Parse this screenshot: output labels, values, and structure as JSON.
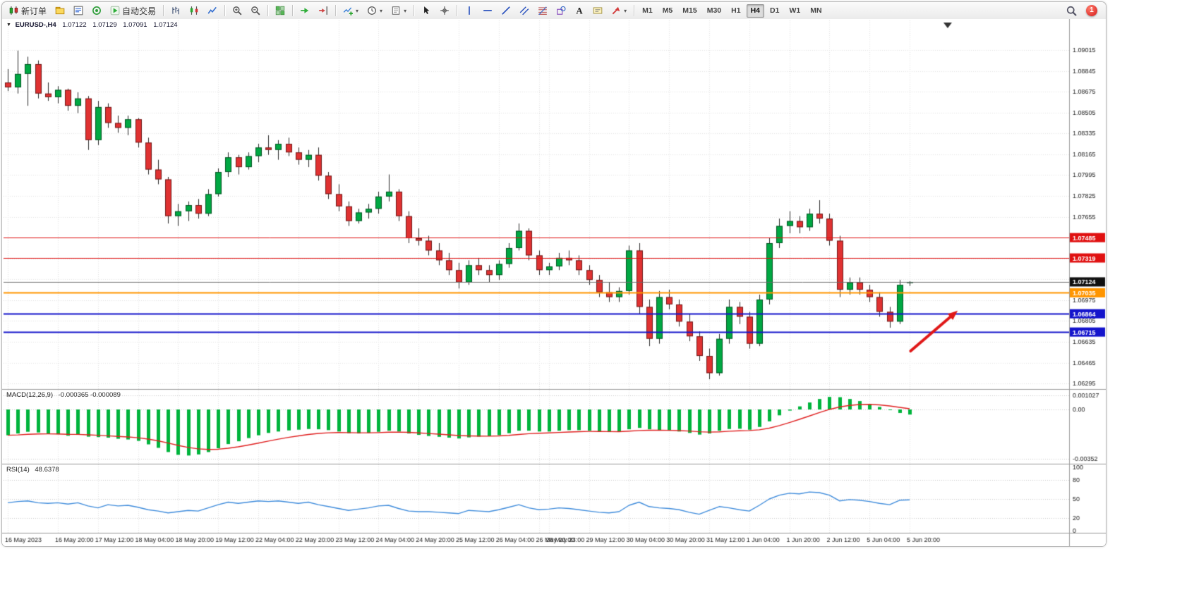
{
  "toolbar": {
    "groups": [
      {
        "items": [
          {
            "name": "new-order-button",
            "icon": "new-order-icon",
            "label": "新订单"
          },
          {
            "name": "chart-profiles-button",
            "icon": "profiles-icon"
          },
          {
            "name": "market-watch-button",
            "icon": "market-watch-icon"
          },
          {
            "name": "data-window-button",
            "icon": "data-window-icon"
          },
          {
            "name": "auto-trading-button",
            "icon": "auto-trading-icon",
            "label": "自动交易"
          }
        ]
      },
      {
        "items": [
          {
            "name": "bar-chart-mode-button",
            "icon": "bar-chart-icon"
          },
          {
            "name": "candlestick-mode-button",
            "icon": "candlestick-icon"
          },
          {
            "name": "line-chart-mode-button",
            "icon": "line-chart-icon"
          }
        ]
      },
      {
        "items": [
          {
            "name": "zoom-in-button",
            "icon": "zoom-in-icon"
          },
          {
            "name": "zoom-out-button",
            "icon": "zoom-out-icon"
          }
        ]
      },
      {
        "items": [
          {
            "name": "tile-windows-button",
            "icon": "tile-windows-icon"
          }
        ]
      },
      {
        "items": [
          {
            "name": "auto-scroll-button",
            "icon": "auto-scroll-icon"
          },
          {
            "name": "chart-shift-button",
            "icon": "chart-shift-icon"
          }
        ]
      },
      {
        "items": [
          {
            "name": "indicators-button",
            "icon": "indicators-icon",
            "caret": true
          },
          {
            "name": "periods-button",
            "icon": "clock-icon",
            "caret": true
          },
          {
            "name": "templates-button",
            "icon": "templates-icon",
            "caret": true
          }
        ]
      },
      {
        "items": [
          {
            "name": "cursor-button",
            "icon": "cursor-icon"
          },
          {
            "name": "crosshair-button",
            "icon": "crosshair-icon"
          }
        ]
      },
      {
        "items": [
          {
            "name": "vertical-line-button",
            "icon": "vertical-line-icon"
          },
          {
            "name": "horizontal-line-button",
            "icon": "horizontal-line-icon"
          },
          {
            "name": "trendline-button",
            "icon": "trendline-icon"
          },
          {
            "name": "channel-button",
            "icon": "channel-icon"
          },
          {
            "name": "fibonacci-button",
            "icon": "fibonacci-icon"
          },
          {
            "name": "shapes-button",
            "icon": "shapes-icon"
          },
          {
            "name": "text-button",
            "icon": "text-icon"
          },
          {
            "name": "text-label-button",
            "icon": "text-label-icon"
          },
          {
            "name": "arrows-button",
            "icon": "arrows-icon",
            "caret": true
          }
        ]
      }
    ],
    "timeframes": [
      "M1",
      "M5",
      "M15",
      "M30",
      "H1",
      "H4",
      "D1",
      "W1",
      "MN"
    ],
    "active_timeframe": "H4",
    "notification_badge": "1"
  },
  "chart": {
    "title": {
      "expander_glyph": "▼",
      "symbol_period": "EURUSD-,H4",
      "open": "1.07122",
      "high": "1.07129",
      "low": "1.07091",
      "close": "1.07124"
    }
  },
  "chart_data": {
    "type": "candlestick",
    "symbol": "EURUSD-",
    "period": "H4",
    "colors": {
      "candle_up": "#00a843",
      "candle_down": "#e03232",
      "outline": "#2b2b2b",
      "grid": "#e3e3e3",
      "level": "#c9c9c9",
      "separator": "#9a9a9a",
      "macd_histogram": "#00b43c",
      "macd_signal": "#e02020",
      "rsi_line": "#3f8cdc",
      "text": "#222222"
    },
    "y_ticks": [
      "1.09015",
      "1.08845",
      "1.08675",
      "1.08505",
      "1.08335",
      "1.08165",
      "1.07995",
      "1.07825",
      "1.07655",
      "1.07485",
      "1.07315",
      "1.07145",
      "1.06975",
      "1.06805",
      "1.06635",
      "1.06465",
      "1.06295"
    ],
    "x_labels": [
      {
        "text": "16 May 2023",
        "i": 0
      },
      {
        "text": "16 May 20:00",
        "i": 5
      },
      {
        "text": "17 May 12:00",
        "i": 9
      },
      {
        "text": "18 May 04:00",
        "i": 13
      },
      {
        "text": "18 May 20:00",
        "i": 17
      },
      {
        "text": "19 May 12:00",
        "i": 21
      },
      {
        "text": "22 May 04:00",
        "i": 25
      },
      {
        "text": "22 May 20:00",
        "i": 29
      },
      {
        "text": "23 May 12:00",
        "i": 33
      },
      {
        "text": "24 May 04:00",
        "i": 37
      },
      {
        "text": "24 May 20:00",
        "i": 41
      },
      {
        "text": "25 May 12:00",
        "i": 45
      },
      {
        "text": "26 May 04:00",
        "i": 49
      },
      {
        "text": "26 May 20:00",
        "i": 53
      },
      {
        "text": "28 May 23:00",
        "i": 54
      },
      {
        "text": "29 May 12:00",
        "i": 58
      },
      {
        "text": "30 May 04:00",
        "i": 62
      },
      {
        "text": "30 May 20:00",
        "i": 66
      },
      {
        "text": "31 May 12:00",
        "i": 70
      },
      {
        "text": "1 Jun 04:00",
        "i": 74
      },
      {
        "text": "1 Jun 20:00",
        "i": 78
      },
      {
        "text": "2 Jun 12:00",
        "i": 82
      },
      {
        "text": "5 Jun 04:00",
        "i": 86
      },
      {
        "text": "5 Jun 20:00",
        "i": 90
      }
    ],
    "ohlc": [
      [
        1.0875,
        1.0886,
        1.0868,
        1.0871
      ],
      [
        1.0871,
        1.0901,
        1.0866,
        1.0882
      ],
      [
        1.0882,
        1.0896,
        1.0856,
        1.089
      ],
      [
        1.089,
        1.0893,
        1.0862,
        1.0866
      ],
      [
        1.0866,
        1.0875,
        1.086,
        1.0863
      ],
      [
        1.0863,
        1.0872,
        1.0858,
        1.0869
      ],
      [
        1.0869,
        1.087,
        1.0852,
        1.0856
      ],
      [
        1.0856,
        1.0867,
        1.085,
        1.0862
      ],
      [
        1.0862,
        1.0864,
        1.082,
        1.0828
      ],
      [
        1.0828,
        1.086,
        1.0824,
        1.0855
      ],
      [
        1.0855,
        1.0858,
        1.0838,
        1.0842
      ],
      [
        1.0842,
        1.0848,
        1.0834,
        1.0838
      ],
      [
        1.0838,
        1.0848,
        1.0832,
        1.0845
      ],
      [
        1.0845,
        1.0846,
        1.0822,
        1.0826
      ],
      [
        1.0826,
        1.083,
        1.08,
        1.0804
      ],
      [
        1.0804,
        1.0812,
        1.0792,
        1.0796
      ],
      [
        1.0796,
        1.0798,
        1.076,
        1.0766
      ],
      [
        1.0766,
        1.0776,
        1.0758,
        1.077
      ],
      [
        1.077,
        1.0778,
        1.0762,
        1.0775
      ],
      [
        1.0775,
        1.078,
        1.0764,
        1.0768
      ],
      [
        1.0768,
        1.0788,
        1.0766,
        1.0784
      ],
      [
        1.0784,
        1.0805,
        1.0782,
        1.0802
      ],
      [
        1.0802,
        1.0818,
        1.0798,
        1.0814
      ],
      [
        1.0814,
        1.0816,
        1.08,
        1.0806
      ],
      [
        1.0806,
        1.0818,
        1.0804,
        1.0815
      ],
      [
        1.0815,
        1.0825,
        1.081,
        1.0822
      ],
      [
        1.0822,
        1.0832,
        1.0816,
        1.082
      ],
      [
        1.082,
        1.0828,
        1.0812,
        1.0825
      ],
      [
        1.0825,
        1.083,
        1.0815,
        1.0818
      ],
      [
        1.0818,
        1.0822,
        1.0808,
        1.0812
      ],
      [
        1.0812,
        1.082,
        1.0806,
        1.0816
      ],
      [
        1.0816,
        1.0822,
        1.0795,
        1.0799
      ],
      [
        1.0799,
        1.0802,
        1.078,
        1.0784
      ],
      [
        1.0784,
        1.0792,
        1.077,
        1.0774
      ],
      [
        1.0774,
        1.0778,
        1.0758,
        1.0762
      ],
      [
        1.0762,
        1.0772,
        1.076,
        1.0769
      ],
      [
        1.0769,
        1.0776,
        1.0764,
        1.0772
      ],
      [
        1.0772,
        1.0786,
        1.0768,
        1.0782
      ],
      [
        1.0782,
        1.08,
        1.0778,
        1.0786
      ],
      [
        1.0786,
        1.0788,
        1.0762,
        1.0766
      ],
      [
        1.0766,
        1.077,
        1.0744,
        1.0748
      ],
      [
        1.0748,
        1.0756,
        1.0742,
        1.0746
      ],
      [
        1.0746,
        1.075,
        1.0734,
        1.0738
      ],
      [
        1.0738,
        1.0744,
        1.0726,
        1.073
      ],
      [
        1.073,
        1.0736,
        1.0718,
        1.0722
      ],
      [
        1.0722,
        1.0728,
        1.0707,
        1.0712
      ],
      [
        1.0712,
        1.073,
        1.071,
        1.0726
      ],
      [
        1.0726,
        1.0732,
        1.0718,
        1.0722
      ],
      [
        1.0722,
        1.0726,
        1.0712,
        1.0718
      ],
      [
        1.0718,
        1.073,
        1.0714,
        1.0727
      ],
      [
        1.0727,
        1.0744,
        1.0724,
        1.074
      ],
      [
        1.074,
        1.076,
        1.0738,
        1.0754
      ],
      [
        1.0754,
        1.0756,
        1.073,
        1.0734
      ],
      [
        1.0734,
        1.0738,
        1.0718,
        1.0722
      ],
      [
        1.0722,
        1.0728,
        1.0718,
        1.0725
      ],
      [
        1.0725,
        1.0736,
        1.0722,
        1.0732
      ],
      [
        1.0732,
        1.0738,
        1.0726,
        1.073
      ],
      [
        1.073,
        1.0734,
        1.0718,
        1.0722
      ],
      [
        1.0722,
        1.0726,
        1.071,
        1.0714
      ],
      [
        1.0714,
        1.0718,
        1.07,
        1.0704
      ],
      [
        1.0704,
        1.0712,
        1.0696,
        1.07
      ],
      [
        1.07,
        1.0708,
        1.0696,
        1.0705
      ],
      [
        1.0705,
        1.0742,
        1.0702,
        1.0738
      ],
      [
        1.0738,
        1.0744,
        1.0686,
        1.0692
      ],
      [
        1.0692,
        1.0698,
        1.066,
        1.0666
      ],
      [
        1.0666,
        1.0705,
        1.0662,
        1.07
      ],
      [
        1.07,
        1.0706,
        1.069,
        1.0694
      ],
      [
        1.0694,
        1.0698,
        1.0676,
        1.068
      ],
      [
        1.068,
        1.0686,
        1.0664,
        1.0668
      ],
      [
        1.0668,
        1.0672,
        1.0648,
        1.0652
      ],
      [
        1.0652,
        1.0658,
        1.0633,
        1.0638
      ],
      [
        1.0638,
        1.067,
        1.0636,
        1.0666
      ],
      [
        1.0666,
        1.0698,
        1.0662,
        1.0692
      ],
      [
        1.0692,
        1.0696,
        1.0678,
        1.0684
      ],
      [
        1.0684,
        1.0688,
        1.0658,
        1.0662
      ],
      [
        1.0662,
        1.0702,
        1.066,
        1.0698
      ],
      [
        1.0698,
        1.0748,
        1.0694,
        1.0744
      ],
      [
        1.0744,
        1.0764,
        1.074,
        1.0758
      ],
      [
        1.0758,
        1.077,
        1.0752,
        1.0762
      ],
      [
        1.0762,
        1.0766,
        1.0752,
        1.0757
      ],
      [
        1.0757,
        1.0772,
        1.0754,
        1.0768
      ],
      [
        1.0768,
        1.0779,
        1.076,
        1.0764
      ],
      [
        1.0764,
        1.0768,
        1.0742,
        1.0746
      ],
      [
        1.0746,
        1.075,
        1.07,
        1.0706
      ],
      [
        1.0706,
        1.0716,
        1.0702,
        1.0712
      ],
      [
        1.0712,
        1.0716,
        1.0702,
        1.0706
      ],
      [
        1.0706,
        1.071,
        1.0696,
        1.07
      ],
      [
        1.07,
        1.0704,
        1.0684,
        1.0688
      ],
      [
        1.0688,
        1.0692,
        1.0675,
        1.068
      ],
      [
        1.068,
        1.0714,
        1.0678,
        1.071
      ],
      [
        1.07122,
        1.07129,
        1.07091,
        1.07124
      ]
    ],
    "lines": [
      {
        "price": 1.07485,
        "label": "1.07485",
        "color": "#e01010",
        "width": 1,
        "type": "resistance"
      },
      {
        "price": 1.07319,
        "label": "1.07319",
        "color": "#e01010",
        "width": 1,
        "type": "resistance"
      },
      {
        "price": 1.07035,
        "label": "1.07035",
        "color": "#ff9500",
        "width": 2,
        "type": "pivot"
      },
      {
        "price": 1.06864,
        "label": "1.06864",
        "color": "#1414cc",
        "width": 2,
        "type": "support"
      },
      {
        "price": 1.06715,
        "label": "1.06715",
        "color": "#1414cc",
        "width": 2,
        "type": "support"
      }
    ],
    "current_price": {
      "price": 1.07124,
      "label": "1.07124",
      "line_color": "#6b6b6b",
      "badge_color": "#101010"
    },
    "indicators": {
      "macd": {
        "title": "MACD(12,26,9)",
        "values_text": "-0.000365 -0.000089",
        "scale": [
          {
            "v": 0.001027,
            "t": "0.001027"
          },
          {
            "v": 0,
            "t": "0.00"
          },
          {
            "v": -0.00352,
            "t": "-0.00352"
          }
        ],
        "histogram": [
          -0.00185,
          -0.00172,
          -0.0016,
          -0.00165,
          -0.00172,
          -0.00178,
          -0.00188,
          -0.00182,
          -0.00195,
          -0.00198,
          -0.00202,
          -0.0021,
          -0.00215,
          -0.00225,
          -0.0025,
          -0.00275,
          -0.00305,
          -0.00325,
          -0.0033,
          -0.00322,
          -0.00305,
          -0.00278,
          -0.00248,
          -0.00228,
          -0.00205,
          -0.00185,
          -0.00168,
          -0.00158,
          -0.0015,
          -0.00145,
          -0.0014,
          -0.00142,
          -0.00148,
          -0.00158,
          -0.0017,
          -0.00172,
          -0.00168,
          -0.0016,
          -0.00152,
          -0.00158,
          -0.00172,
          -0.00182,
          -0.0019,
          -0.00196,
          -0.00202,
          -0.00208,
          -0.002,
          -0.00195,
          -0.00192,
          -0.00184,
          -0.0017,
          -0.00152,
          -0.00152,
          -0.00158,
          -0.00158,
          -0.00152,
          -0.00148,
          -0.00148,
          -0.00152,
          -0.00158,
          -0.00162,
          -0.0016,
          -0.00142,
          -0.00132,
          -0.00142,
          -0.00148,
          -0.00152,
          -0.00158,
          -0.00168,
          -0.0018,
          -0.00172,
          -0.00152,
          -0.0014,
          -0.00138,
          -0.00145,
          -0.00125,
          -0.00085,
          -0.00042,
          -8e-05,
          0.00022,
          0.0005,
          0.00075,
          0.0009,
          0.00088,
          0.00075,
          0.0006,
          0.0004,
          0.00018,
          -5e-05,
          -0.00025,
          -0.000365
        ]
      },
      "rsi": {
        "title": "RSI(14)",
        "value_text": "48.6378",
        "levels": [
          80,
          50,
          20
        ],
        "scale_labels": [
          {
            "v": 100,
            "t": "100"
          },
          {
            "v": 80,
            "t": "80"
          },
          {
            "v": 50,
            "t": "50"
          },
          {
            "v": 20,
            "t": "20"
          },
          {
            "v": 0,
            "t": "0"
          }
        ],
        "series": [
          44,
          46,
          47,
          44,
          43,
          44,
          42,
          44,
          39,
          36,
          41,
          39,
          40,
          37,
          33,
          31,
          28,
          30,
          32,
          31,
          36,
          41,
          45,
          43,
          45,
          47,
          46,
          47,
          45,
          43,
          45,
          41,
          38,
          35,
          32,
          34,
          36,
          39,
          40,
          35,
          31,
          30,
          30,
          29,
          28,
          27,
          32,
          31,
          30,
          33,
          37,
          41,
          36,
          33,
          34,
          36,
          35,
          33,
          31,
          29,
          28,
          30,
          40,
          45,
          38,
          36,
          35,
          33,
          29,
          26,
          32,
          38,
          36,
          33,
          31,
          40,
          50,
          56,
          59,
          58,
          61,
          60,
          56,
          47,
          49,
          48,
          46,
          43,
          41,
          48,
          48.6
        ]
      }
    },
    "annotation_arrow": {
      "from": {
        "i": 90.1,
        "price": 1.0656
      },
      "to": {
        "i": 94.8,
        "price": 1.0689
      },
      "color": "#e01818"
    },
    "end_marker_i": 93.8
  }
}
